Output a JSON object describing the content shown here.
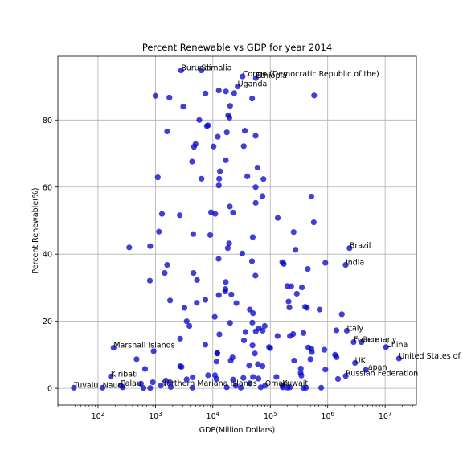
{
  "chart_data": {
    "type": "scatter",
    "title": "Percent Renewable vs GDP for year 2014",
    "xlabel": "GDP(Million Dollars)",
    "ylabel": "Percent Renewable(%)",
    "xscale": "log",
    "xlim": [
      20,
      35000000
    ],
    "ylim": [
      -5,
      99
    ],
    "grid": true,
    "marker_color": "#0000cc",
    "x_ticks": [
      {
        "value": 100,
        "base": "10",
        "exp": "2"
      },
      {
        "value": 1000,
        "base": "10",
        "exp": "3"
      },
      {
        "value": 10000,
        "base": "10",
        "exp": "4"
      },
      {
        "value": 100000,
        "base": "10",
        "exp": "5"
      },
      {
        "value": 1000000,
        "base": "10",
        "exp": "6"
      },
      {
        "value": 10000000,
        "base": "10",
        "exp": "7"
      }
    ],
    "y_ticks": [
      {
        "value": 0,
        "label": "0"
      },
      {
        "value": 20,
        "label": "20"
      },
      {
        "value": 40,
        "label": "40"
      },
      {
        "value": 60,
        "label": "60"
      },
      {
        "value": 80,
        "label": "80"
      }
    ],
    "labeled_points": [
      {
        "name": "Burundi",
        "x": 2800,
        "y": 94.8
      },
      {
        "name": "Somalia",
        "x": 6300,
        "y": 94.8
      },
      {
        "name": "Congo (Democratic Republic of the)",
        "x": 33000,
        "y": 93.0
      },
      {
        "name": "Ethiopia",
        "x": 56000,
        "y": 92.5
      },
      {
        "name": "Uganda",
        "x": 27000,
        "y": 90.0
      },
      {
        "name": "Brazil",
        "x": 2400000,
        "y": 41.8
      },
      {
        "name": "India",
        "x": 2050000,
        "y": 36.8
      },
      {
        "name": "Italy",
        "x": 2150000,
        "y": 17.2
      },
      {
        "name": "France",
        "x": 2830000,
        "y": 13.8
      },
      {
        "name": "Germany",
        "x": 3870000,
        "y": 13.8
      },
      {
        "name": "China",
        "x": 10350000,
        "y": 12.3
      },
      {
        "name": "United States of America",
        "x": 17400000,
        "y": 8.9
      },
      {
        "name": "UK",
        "x": 2990000,
        "y": 7.6
      },
      {
        "name": "Japan",
        "x": 4600000,
        "y": 5.5
      },
      {
        "name": "Russian Federation",
        "x": 2060000,
        "y": 3.7
      },
      {
        "name": "Marshall Islands",
        "x": 187,
        "y": 12.1
      },
      {
        "name": "Kiribati",
        "x": 167,
        "y": 3.5
      },
      {
        "name": "Tuvalu",
        "x": 38,
        "y": 0.2
      },
      {
        "name": "Nauru",
        "x": 120,
        "y": 0.2
      },
      {
        "name": "Palau",
        "x": 250,
        "y": 0.8
      },
      {
        "name": "Northern Mariana Islands",
        "x": 1240,
        "y": 0.8
      },
      {
        "name": "Oman",
        "x": 81000,
        "y": 0.8
      },
      {
        "name": "Kuwait",
        "x": 163000,
        "y": 0.8
      }
    ],
    "points": [
      {
        "x": 1000,
        "y": 87.2
      },
      {
        "x": 1750,
        "y": 86.7
      },
      {
        "x": 3050,
        "y": 84.0
      },
      {
        "x": 7850,
        "y": 78.2
      },
      {
        "x": 5800,
        "y": 80.0
      },
      {
        "x": 12700,
        "y": 88.8
      },
      {
        "x": 16900,
        "y": 88.5
      },
      {
        "x": 23500,
        "y": 88.0
      },
      {
        "x": 48300,
        "y": 86.4
      },
      {
        "x": 7450,
        "y": 87.9
      },
      {
        "x": 20000,
        "y": 84.2
      },
      {
        "x": 18500,
        "y": 81.4
      },
      {
        "x": 19500,
        "y": 80.7
      },
      {
        "x": 36000,
        "y": 76.8
      },
      {
        "x": 17500,
        "y": 76.3
      },
      {
        "x": 12200,
        "y": 75.0
      },
      {
        "x": 55500,
        "y": 75.3
      },
      {
        "x": 34500,
        "y": 72.2
      },
      {
        "x": 10300,
        "y": 72.1
      },
      {
        "x": 1600,
        "y": 76.6
      },
      {
        "x": 5000,
        "y": 72.8
      },
      {
        "x": 4700,
        "y": 72.0
      },
      {
        "x": 8250,
        "y": 78.4
      },
      {
        "x": 580000,
        "y": 87.3
      },
      {
        "x": 4350,
        "y": 67.6
      },
      {
        "x": 16800,
        "y": 68.0
      },
      {
        "x": 60000,
        "y": 65.8
      },
      {
        "x": 1100,
        "y": 62.9
      },
      {
        "x": 6350,
        "y": 62.5
      },
      {
        "x": 12900,
        "y": 62.5
      },
      {
        "x": 13300,
        "y": 64.7
      },
      {
        "x": 12700,
        "y": 60.5
      },
      {
        "x": 39800,
        "y": 63.2
      },
      {
        "x": 76000,
        "y": 62.4
      },
      {
        "x": 55600,
        "y": 60.0
      },
      {
        "x": 73300,
        "y": 57.3
      },
      {
        "x": 55700,
        "y": 55.3
      },
      {
        "x": 520000,
        "y": 57.2
      },
      {
        "x": 19800,
        "y": 54.2
      },
      {
        "x": 22500,
        "y": 52.4
      },
      {
        "x": 9300,
        "y": 52.5
      },
      {
        "x": 11000,
        "y": 52.0
      },
      {
        "x": 1300,
        "y": 52.0
      },
      {
        "x": 2650,
        "y": 51.6
      },
      {
        "x": 135000,
        "y": 50.8
      },
      {
        "x": 572000,
        "y": 49.5
      },
      {
        "x": 1150,
        "y": 46.7
      },
      {
        "x": 4550,
        "y": 46.0
      },
      {
        "x": 9000,
        "y": 45.7
      },
      {
        "x": 49500,
        "y": 45.1
      },
      {
        "x": 255000,
        "y": 46.6
      },
      {
        "x": 19200,
        "y": 43.2
      },
      {
        "x": 18200,
        "y": 41.8
      },
      {
        "x": 350,
        "y": 42.0
      },
      {
        "x": 810,
        "y": 42.4
      },
      {
        "x": 32500,
        "y": 40.2
      },
      {
        "x": 275000,
        "y": 41.3
      },
      {
        "x": 12600,
        "y": 38.6
      },
      {
        "x": 48000,
        "y": 37.9
      },
      {
        "x": 162000,
        "y": 37.6
      },
      {
        "x": 172000,
        "y": 37.1
      },
      {
        "x": 910000,
        "y": 37.4
      },
      {
        "x": 1600,
        "y": 36.8
      },
      {
        "x": 450000,
        "y": 35.6
      },
      {
        "x": 1450,
        "y": 34.4
      },
      {
        "x": 4600,
        "y": 34.4
      },
      {
        "x": 55200,
        "y": 33.6
      },
      {
        "x": 800,
        "y": 32.1
      },
      {
        "x": 5300,
        "y": 32.3
      },
      {
        "x": 16800,
        "y": 31.7
      },
      {
        "x": 198000,
        "y": 30.5
      },
      {
        "x": 232000,
        "y": 30.4
      },
      {
        "x": 355000,
        "y": 30.1
      },
      {
        "x": 16600,
        "y": 29.6
      },
      {
        "x": 16400,
        "y": 28.9
      },
      {
        "x": 21000,
        "y": 28.0
      },
      {
        "x": 12700,
        "y": 27.8
      },
      {
        "x": 290000,
        "y": 28.2
      },
      {
        "x": 7400,
        "y": 26.4
      },
      {
        "x": 1800,
        "y": 26.2
      },
      {
        "x": 5250,
        "y": 25.5
      },
      {
        "x": 25700,
        "y": 25.4
      },
      {
        "x": 208000,
        "y": 25.9
      },
      {
        "x": 215000,
        "y": 24.1
      },
      {
        "x": 405000,
        "y": 24.3
      },
      {
        "x": 435000,
        "y": 24.0
      },
      {
        "x": 720000,
        "y": 23.5
      },
      {
        "x": 3200,
        "y": 24.0
      },
      {
        "x": 44000,
        "y": 23.5
      },
      {
        "x": 50000,
        "y": 22.4
      },
      {
        "x": 10800,
        "y": 21.3
      },
      {
        "x": 1760000,
        "y": 22.1
      },
      {
        "x": 3500,
        "y": 20.0
      },
      {
        "x": 3900,
        "y": 18.6
      },
      {
        "x": 20000,
        "y": 19.5
      },
      {
        "x": 48700,
        "y": 19.6
      },
      {
        "x": 63600,
        "y": 17.9
      },
      {
        "x": 80000,
        "y": 18.6
      },
      {
        "x": 73600,
        "y": 17.2
      },
      {
        "x": 56000,
        "y": 17.0
      },
      {
        "x": 37000,
        "y": 16.8
      },
      {
        "x": 13000,
        "y": 16.1
      },
      {
        "x": 134000,
        "y": 15.6
      },
      {
        "x": 220000,
        "y": 15.6
      },
      {
        "x": 250000,
        "y": 16.2
      },
      {
        "x": 378000,
        "y": 16.5
      },
      {
        "x": 1420000,
        "y": 17.3
      },
      {
        "x": 2700,
        "y": 14.8
      },
      {
        "x": 34800,
        "y": 14.3
      },
      {
        "x": 49000,
        "y": 12.8
      },
      {
        "x": 7400,
        "y": 13.0
      },
      {
        "x": 95000,
        "y": 12.3
      },
      {
        "x": 100000,
        "y": 12.0
      },
      {
        "x": 460000,
        "y": 12.2
      },
      {
        "x": 520000,
        "y": 11.8
      },
      {
        "x": 530000,
        "y": 10.8
      },
      {
        "x": 875000,
        "y": 11.5
      },
      {
        "x": 930,
        "y": 11.1
      },
      {
        "x": 11900,
        "y": 10.5
      },
      {
        "x": 12000,
        "y": 10.4
      },
      {
        "x": 54000,
        "y": 10.4
      },
      {
        "x": 1340000,
        "y": 10.0
      },
      {
        "x": 1420000,
        "y": 9.3
      },
      {
        "x": 22000,
        "y": 9.2
      },
      {
        "x": 470,
        "y": 8.7
      },
      {
        "x": 20500,
        "y": 8.3
      },
      {
        "x": 11600,
        "y": 8.0
      },
      {
        "x": 260000,
        "y": 8.3
      },
      {
        "x": 500000,
        "y": 8.7
      },
      {
        "x": 61000,
        "y": 7.2
      },
      {
        "x": 73200,
        "y": 6.6
      },
      {
        "x": 2700,
        "y": 6.6
      },
      {
        "x": 2850,
        "y": 6.4
      },
      {
        "x": 43000,
        "y": 6.8
      },
      {
        "x": 340000,
        "y": 5.9
      },
      {
        "x": 660,
        "y": 5.8
      },
      {
        "x": 910000,
        "y": 5.6
      },
      {
        "x": 8250,
        "y": 3.9
      },
      {
        "x": 10900,
        "y": 3.9
      },
      {
        "x": 4450,
        "y": 3.3
      },
      {
        "x": 3500,
        "y": 2.7
      },
      {
        "x": 1520,
        "y": 2.3
      },
      {
        "x": 11600,
        "y": 2.8
      },
      {
        "x": 22500,
        "y": 2.6
      },
      {
        "x": 34000,
        "y": 3.1
      },
      {
        "x": 50000,
        "y": 3.4
      },
      {
        "x": 62200,
        "y": 2.9
      },
      {
        "x": 44000,
        "y": 1.5
      },
      {
        "x": 25000,
        "y": 0.8
      },
      {
        "x": 17500,
        "y": 0.3
      },
      {
        "x": 30700,
        "y": 0.2
      },
      {
        "x": 68000,
        "y": 0.3
      },
      {
        "x": 128000,
        "y": 3.4
      },
      {
        "x": 165000,
        "y": 0.3
      },
      {
        "x": 198000,
        "y": 0.2
      },
      {
        "x": 220000,
        "y": 0.3
      },
      {
        "x": 348000,
        "y": 3.8
      },
      {
        "x": 338000,
        "y": 4.6
      },
      {
        "x": 1510000,
        "y": 2.8
      },
      {
        "x": 560,
        "y": 1.4
      },
      {
        "x": 1800,
        "y": 1.8
      },
      {
        "x": 900,
        "y": 1.8
      },
      {
        "x": 810,
        "y": 0.1
      },
      {
        "x": 1850,
        "y": 0.4
      },
      {
        "x": 270,
        "y": 0.3
      },
      {
        "x": 620,
        "y": 0.1
      },
      {
        "x": 4400,
        "y": 0.2
      },
      {
        "x": 770000,
        "y": 0.2
      },
      {
        "x": 380000,
        "y": 0.1
      },
      {
        "x": 420000,
        "y": 0.2
      }
    ]
  }
}
